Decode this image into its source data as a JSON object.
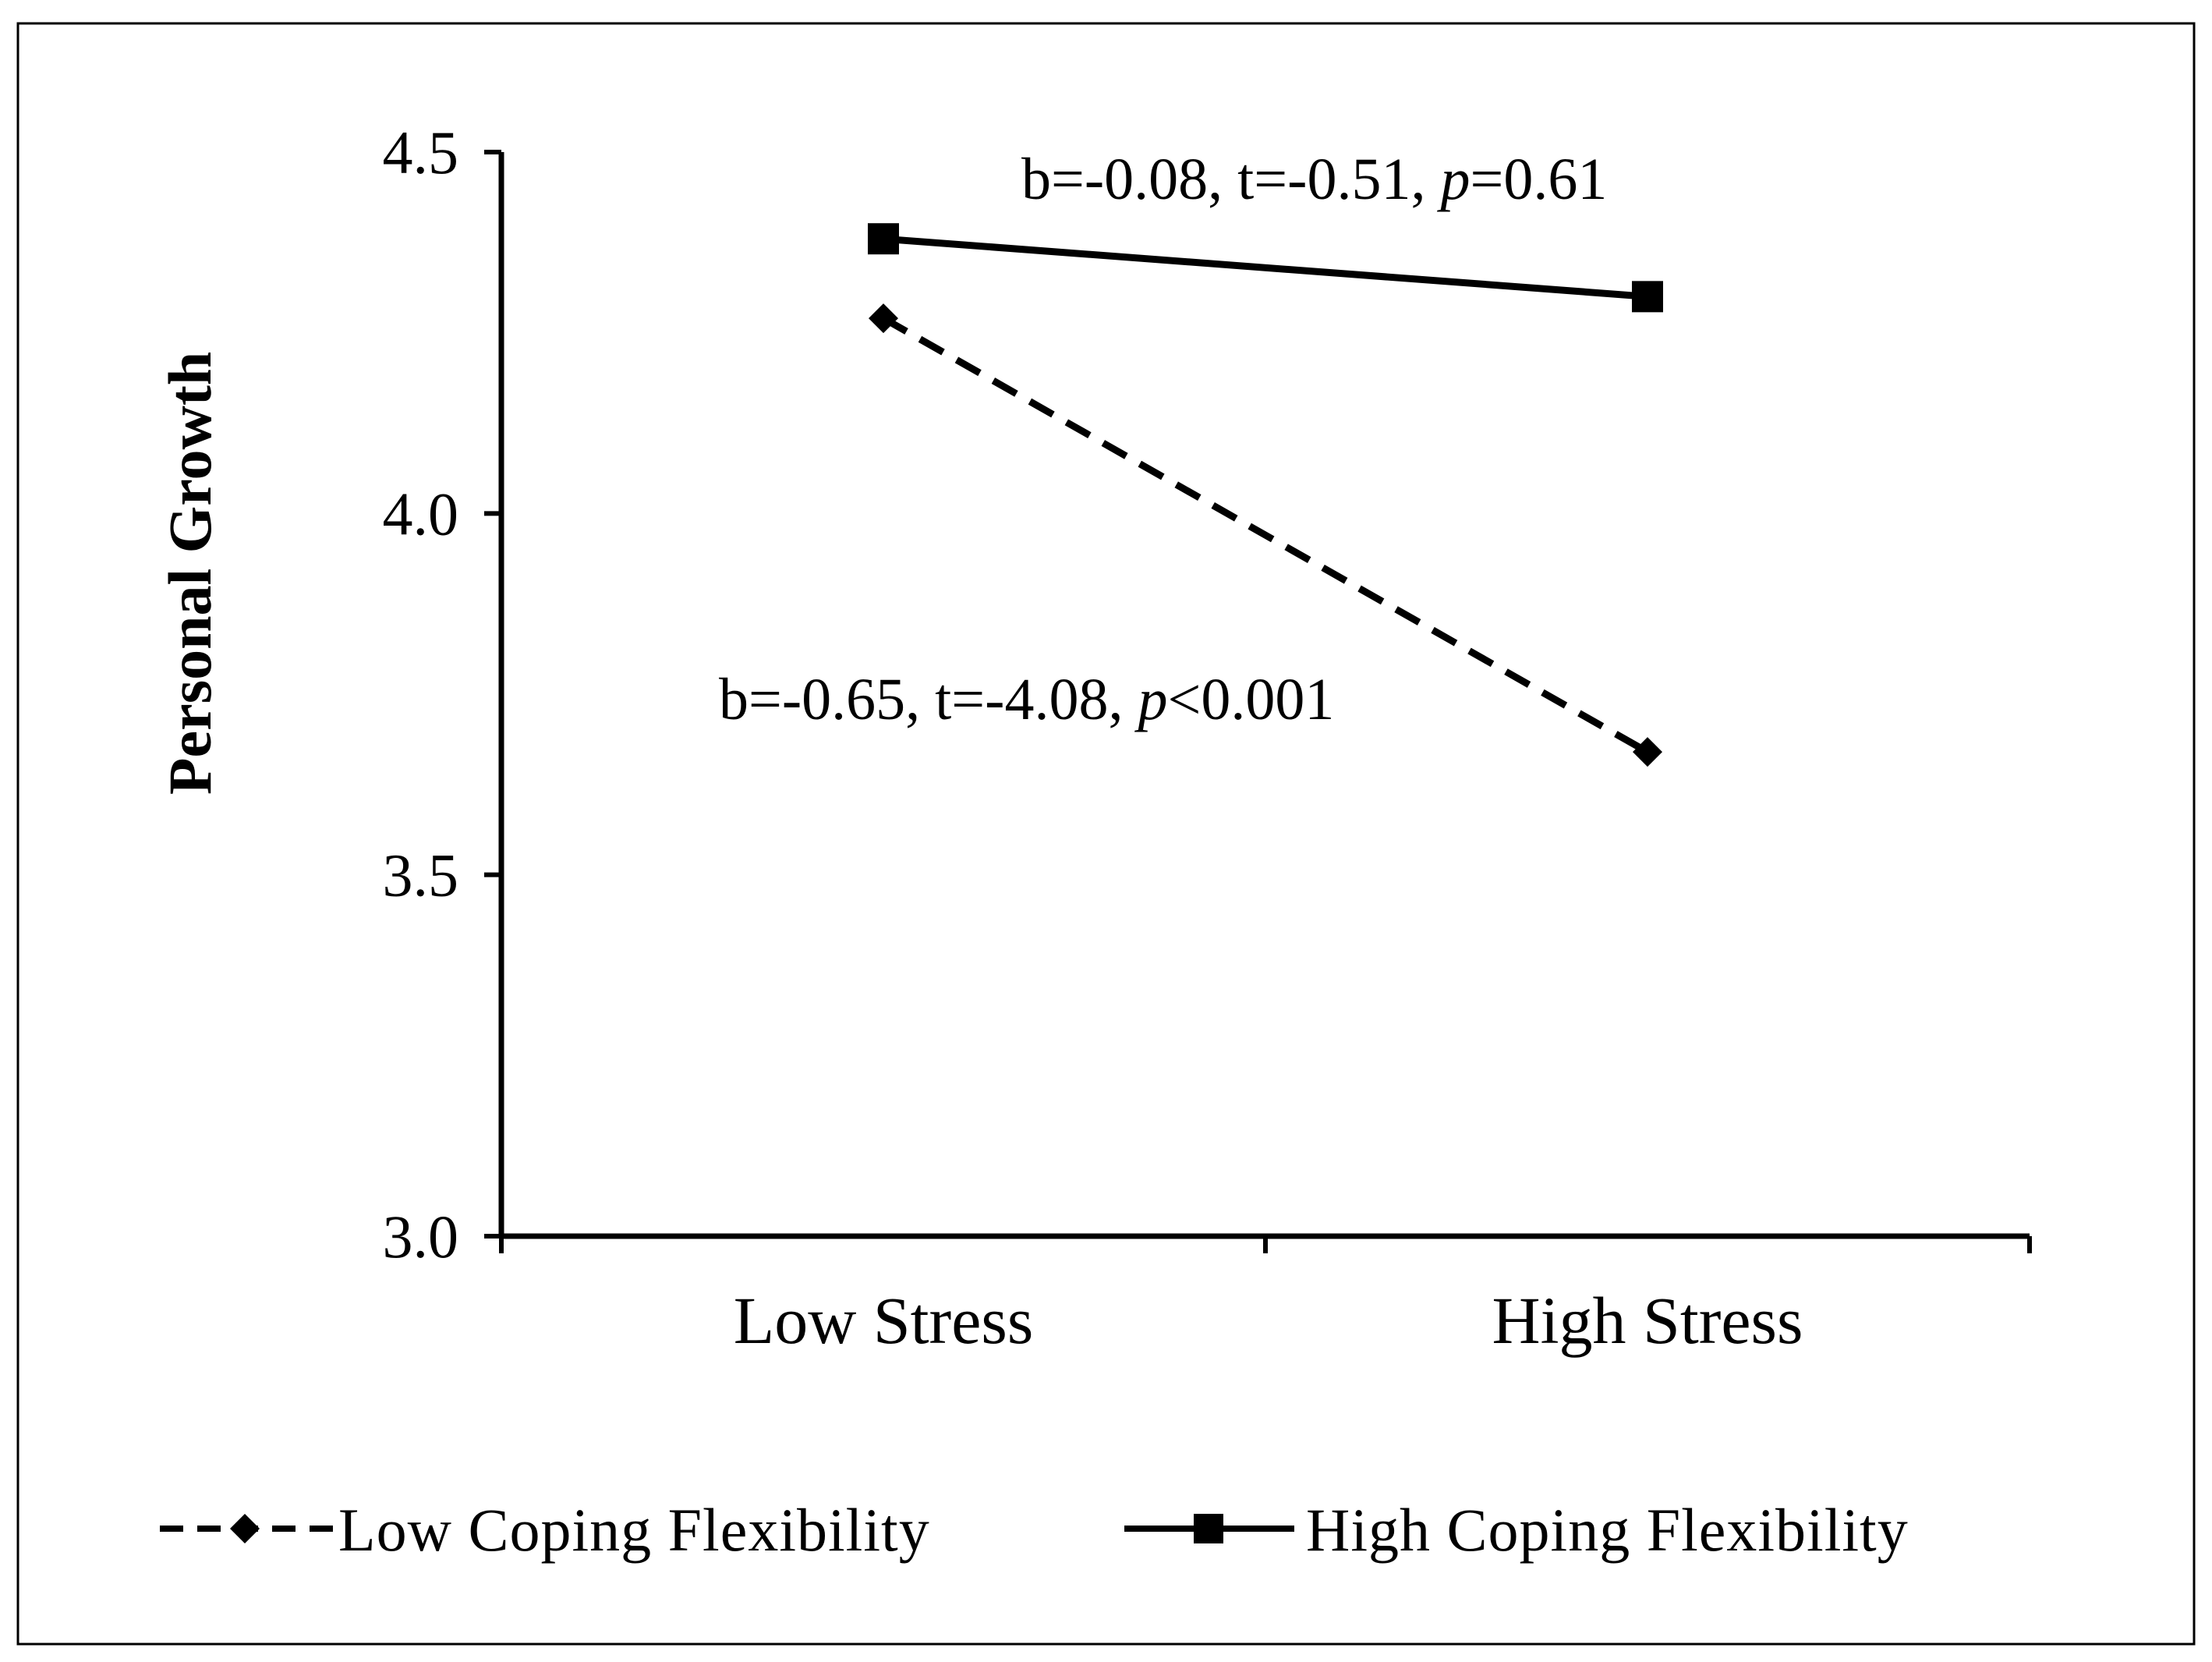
{
  "chart_data": {
    "type": "line",
    "title": "",
    "xlabel": "",
    "ylabel": "Personal Growth",
    "categories": [
      "Low Stress",
      "High Stress"
    ],
    "ylim": [
      3.0,
      4.5
    ],
    "yticks": [
      3.0,
      3.5,
      4.0,
      4.5
    ],
    "ytick_labels": [
      "3.0",
      "3.5",
      "4.0",
      "4.5"
    ],
    "grid": false,
    "legend_position": "bottom",
    "series": [
      {
        "name": "Low Coping Flexibility",
        "values": [
          4.27,
          3.67
        ],
        "line_style": "dashed",
        "marker": "diamond",
        "color": "#000000",
        "annotation": {
          "pre": "b=-0.65, t=-4.08, ",
          "p": "p",
          "post": "<0.001"
        }
      },
      {
        "name": "High Coping Flexibility",
        "values": [
          4.38,
          4.3
        ],
        "line_style": "solid",
        "marker": "square",
        "color": "#000000",
        "annotation": {
          "pre": "b=-0.08, t=-0.51, ",
          "p": "p",
          "post": "=0.61"
        }
      }
    ]
  }
}
